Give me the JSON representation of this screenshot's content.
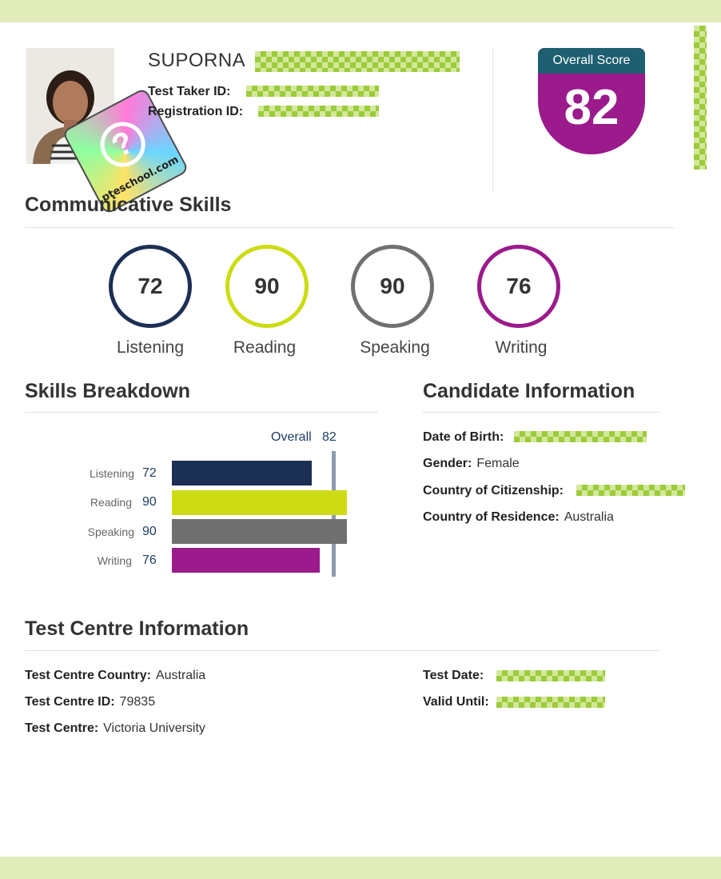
{
  "candidate": {
    "name": "SUPORNA",
    "test_taker_id_label": "Test Taker ID:",
    "registration_id_label": "Registration ID:"
  },
  "overall": {
    "label": "Overall Score",
    "value": "82"
  },
  "seal_watermark": "pteschool.com",
  "communicative": {
    "title": "Communicative Skills",
    "skills": [
      {
        "name": "Listening",
        "score": "72",
        "color": "#1c2f55"
      },
      {
        "name": "Reading",
        "score": "90",
        "color": "#cddc12"
      },
      {
        "name": "Speaking",
        "score": "90",
        "color": "#707070"
      },
      {
        "name": "Writing",
        "score": "76",
        "color": "#9b1a8c"
      }
    ]
  },
  "breakdown": {
    "title": "Skills Breakdown",
    "overall_label": "Overall",
    "overall_value": "82",
    "rows": [
      {
        "name": "Listening",
        "value": "72"
      },
      {
        "name": "Reading",
        "value": "90"
      },
      {
        "name": "Speaking",
        "value": "90"
      },
      {
        "name": "Writing",
        "value": "76"
      }
    ]
  },
  "candidate_info": {
    "title": "Candidate Information",
    "dob_label": "Date of Birth:",
    "gender_label": "Gender:",
    "gender_value": "Female",
    "citizenship_label": "Country of Citizenship:",
    "residence_label": "Country of Residence:",
    "residence_value": "Australia"
  },
  "test_centre": {
    "title": "Test Centre Information",
    "country_label": "Test Centre Country:",
    "country_value": "Australia",
    "id_label": "Test Centre ID:",
    "id_value": "79835",
    "centre_label": "Test Centre:",
    "centre_value": "Victoria University",
    "test_date_label": "Test Date:",
    "valid_until_label": "Valid Until:"
  }
}
